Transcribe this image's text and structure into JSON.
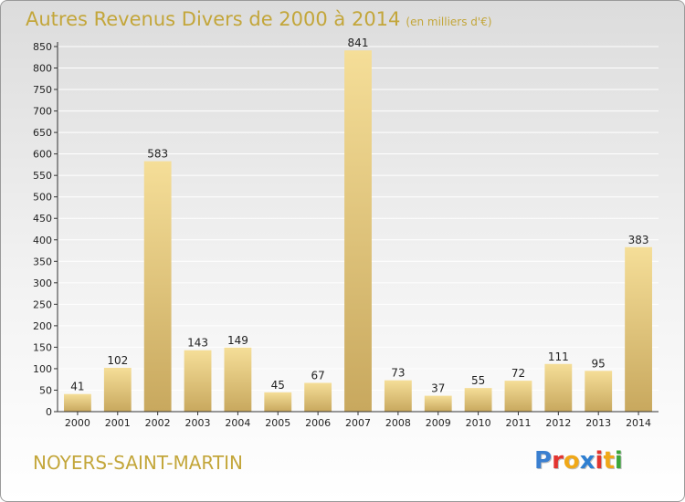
{
  "header": {
    "title": "Autres Revenus Divers de 2000 à 2014",
    "unit": "(en milliers d'€)"
  },
  "footer": {
    "place": "NOYERS-SAINT-MARTIN",
    "brand": {
      "letters": [
        "P",
        "r",
        "o",
        "x",
        "i",
        "t",
        "i"
      ],
      "colors": [
        "#3a7fd0",
        "#e3342f",
        "#f0a818",
        "#2f7fd1",
        "#e3342f",
        "#f0a818",
        "#3aa63a"
      ]
    }
  },
  "chart_data": {
    "type": "bar",
    "title": "Autres Revenus Divers de 2000 à 2014",
    "subtitle": "(en milliers d'€)",
    "xlabel": "",
    "ylabel": "",
    "categories": [
      "2000",
      "2001",
      "2002",
      "2003",
      "2004",
      "2005",
      "2006",
      "2007",
      "2008",
      "2009",
      "2010",
      "2011",
      "2012",
      "2013",
      "2014"
    ],
    "values": [
      41,
      102,
      583,
      143,
      149,
      45,
      67,
      841,
      73,
      37,
      55,
      72,
      111,
      95,
      383
    ],
    "ylim": [
      0,
      850
    ],
    "yticks": [
      0,
      50,
      100,
      150,
      200,
      250,
      300,
      350,
      400,
      450,
      500,
      550,
      600,
      650,
      700,
      750,
      800,
      850
    ],
    "grid": true,
    "legend": "none",
    "colors": {
      "bar_light": "#f5de98",
      "bar_dark": "#c8a85e",
      "grid": "#ffffff",
      "axis": "#333333"
    }
  }
}
